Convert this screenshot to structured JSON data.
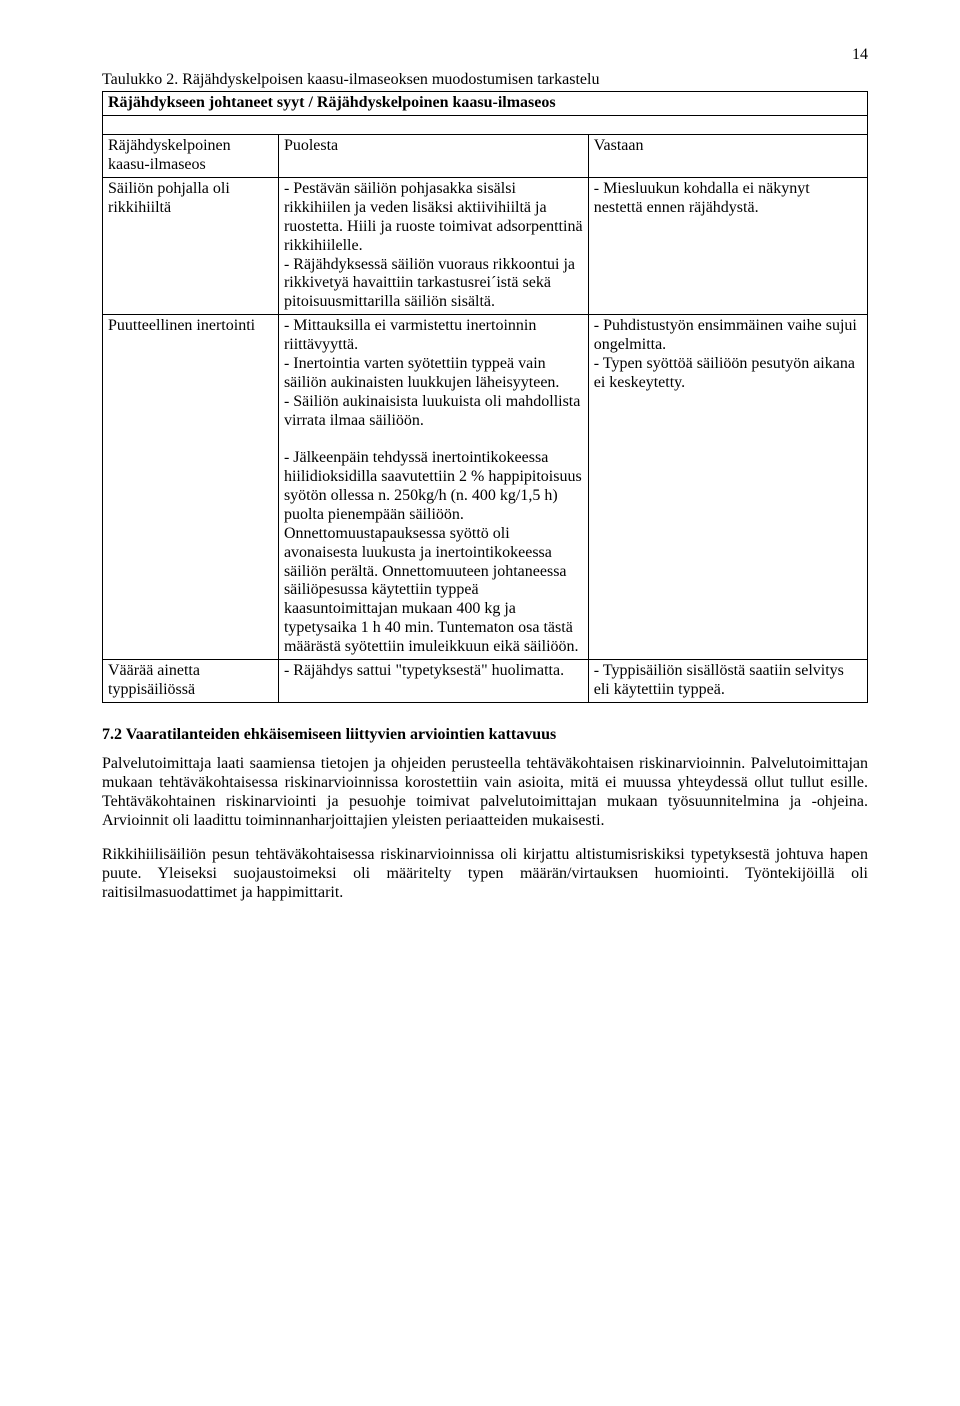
{
  "page": {
    "number": "14"
  },
  "caption": "Taulukko 2. Räjähdyskelpoisen kaasu-ilmaseoksen muodostumisen tarkastelu",
  "table": {
    "header_full": "Räjähdykseen johtaneet syyt / Räjähdyskelpoinen kaasu-ilmaseos",
    "col1_header": "Räjähdyskelpoinen kaasu-ilmaseos",
    "col2_header": "Puolesta",
    "col3_header": "Vastaan",
    "rows": [
      {
        "c1": "Säiliön pohjalla oli rikkihiiltä",
        "c2": "- Pestävän säiliön pohjasakka sisälsi rikkihiilen ja veden lisäksi aktiivihiiltä ja ruostetta. Hiili ja ruoste toimivat adsorpenttinä rikkihiilelle.\n- Räjähdyksessä säiliön vuoraus rikkoontui ja rikkivetyä havaittiin tarkastusrei´istä sekä pitoisuusmittarilla säiliön sisältä.",
        "c3": "- Miesluukun kohdalla ei näkynyt nestettä ennen räjähdystä."
      },
      {
        "c1": "Puutteellinen inertointi",
        "c2": "- Mittauksilla ei varmistettu inertoinnin riittävyyttä.\n- Inertointia varten syötettiin typpeä vain säiliön aukinaisten luukkujen läheisyyteen.\n- Säiliön aukinaisista luukuista oli mahdollista virrata ilmaa säiliöön.\n\n- Jälkeenpäin tehdyssä inertointikokeessa hiilidioksidilla saavutettiin 2 % happipitoisuus syötön ollessa n. 250kg/h (n. 400 kg/1,5 h) puolta pienempään säiliöön. Onnettomuustapauksessa syöttö oli avonaisesta luukusta ja inertointikokeessa säiliön perältä. Onnettomuuteen johtaneessa säiliöpesussa käytettiin typpeä kaasuntoimittajan mukaan 400 kg ja typetysaika 1 h 40 min. Tuntematon osa tästä määrästä syötettiin imuleikkuun eikä säiliöön.",
        "c3": "- Puhdistustyön ensimmäinen vaihe sujui ongelmitta.\n- Typen syöttöä säiliöön pesutyön aikana ei keskeytetty."
      },
      {
        "c1": "Väärää ainetta typpisäiliössä",
        "c2": "- Räjähdys sattui \"typetyksestä\" huolimatta.",
        "c3": "- Typpisäiliön sisällöstä saatiin selvitys eli käytettiin typpeä."
      }
    ]
  },
  "section": {
    "heading": "7.2  Vaaratilanteiden ehkäisemiseen liittyvien arviointien kattavuus",
    "p1": "Palvelutoimittaja laati saamiensa tietojen ja ohjeiden perusteella tehtäväkohtaisen riskinarvioinnin. Palvelutoimittajan mukaan tehtäväkohtaisessa riskinarvioinnissa korostettiin vain asioita, mitä ei muussa yhteydessä ollut tullut esille. Tehtäväkohtainen riskinarviointi ja pesuohje toimivat palvelutoimittajan mukaan työsuunnitelmina ja -ohjeina. Arvioinnit oli laadittu toiminnanharjoittajien yleisten periaatteiden mukaisesti.",
    "p2": "Rikkihiilisäiliön pesun tehtäväkohtaisessa riskinarvioinnissa oli kirjattu altistumisriskiksi typetyksestä johtuva hapen puute. Yleiseksi suojaustoimeksi oli määritelty typen määrän/virtauksen huomiointi. Työntekijöillä oli raitisilmasuodattimet ja happimittarit."
  }
}
